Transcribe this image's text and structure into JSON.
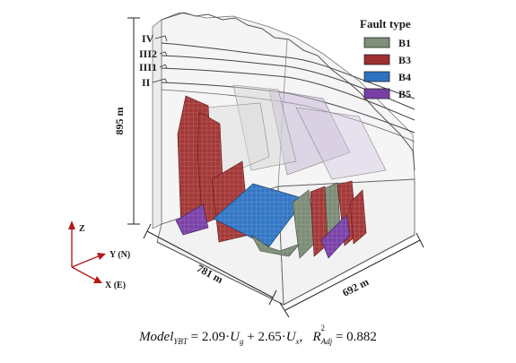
{
  "layers": [
    "IV",
    "III2",
    "III1",
    "II"
  ],
  "dimensions": {
    "height": "895 m",
    "width_x": "781 m",
    "width_y": "692 m"
  },
  "axes": {
    "z": "Z",
    "y": "Y (N)",
    "x": "X (E)"
  },
  "legend": {
    "title": "Fault type",
    "items": [
      {
        "label": "B1",
        "color": "#7f8f7a"
      },
      {
        "label": "B3",
        "color": "#9e2f30"
      },
      {
        "label": "B4",
        "color": "#2f73c0"
      },
      {
        "label": "B5",
        "color": "#7a3fa6"
      }
    ]
  },
  "formula": {
    "lhs": "Model",
    "lhs_sub": "YBT",
    "coef1": "2.09",
    "var1": "U",
    "var1_sub": "g",
    "coef2": "2.65",
    "var2": "U",
    "var2_sub": "x",
    "r2_label": "R",
    "r2_sup": "2",
    "r2_sub": "Adj",
    "r2_value": "0.882"
  }
}
